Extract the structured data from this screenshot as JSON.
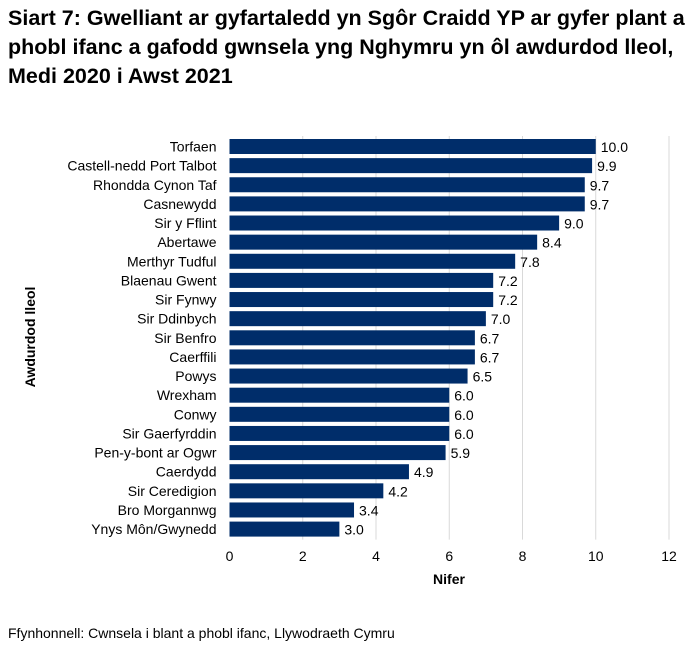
{
  "chart_data": {
    "type": "bar",
    "orientation": "horizontal",
    "title": "Siart 7: Gwelliant ar gyfartaledd yn Sgôr Craidd YP ar gyfer plant a phobl ifanc a gafodd gwnsela yng Nghymru yn ôl awdurdod lleol, Medi 2020 i Awst 2021",
    "xlabel": "Nifer",
    "ylabel": "Awdurdod lleol",
    "xlim": [
      0,
      12
    ],
    "xticks": [
      0,
      2,
      4,
      6,
      8,
      10,
      12
    ],
    "grid": true,
    "bar_color": "#002d6a",
    "categories": [
      "Torfaen",
      "Castell-nedd Port Talbot",
      "Rhondda Cynon Taf",
      "Casnewydd",
      "Sir y Fflint",
      "Abertawe",
      "Merthyr Tudful",
      "Blaenau Gwent",
      "Sir Fynwy",
      "Sir Ddinbych",
      "Sir Benfro",
      "Caerffili",
      "Powys",
      "Wrexham",
      "Conwy",
      "Sir Gaerfyrddin",
      "Pen-y-bont ar Ogwr",
      "Caerdydd",
      "Sir Ceredigion",
      "Bro Morgannwg",
      "Ynys Môn/Gwynedd"
    ],
    "values": [
      10.0,
      9.9,
      9.7,
      9.7,
      9.0,
      8.4,
      7.8,
      7.2,
      7.2,
      7.0,
      6.7,
      6.7,
      6.5,
      6.0,
      6.0,
      6.0,
      5.9,
      4.9,
      4.2,
      3.4,
      3.0
    ]
  },
  "source": "Ffynhonnell: Cwnsela i blant a phobl ifanc, Llywodraeth Cymru"
}
